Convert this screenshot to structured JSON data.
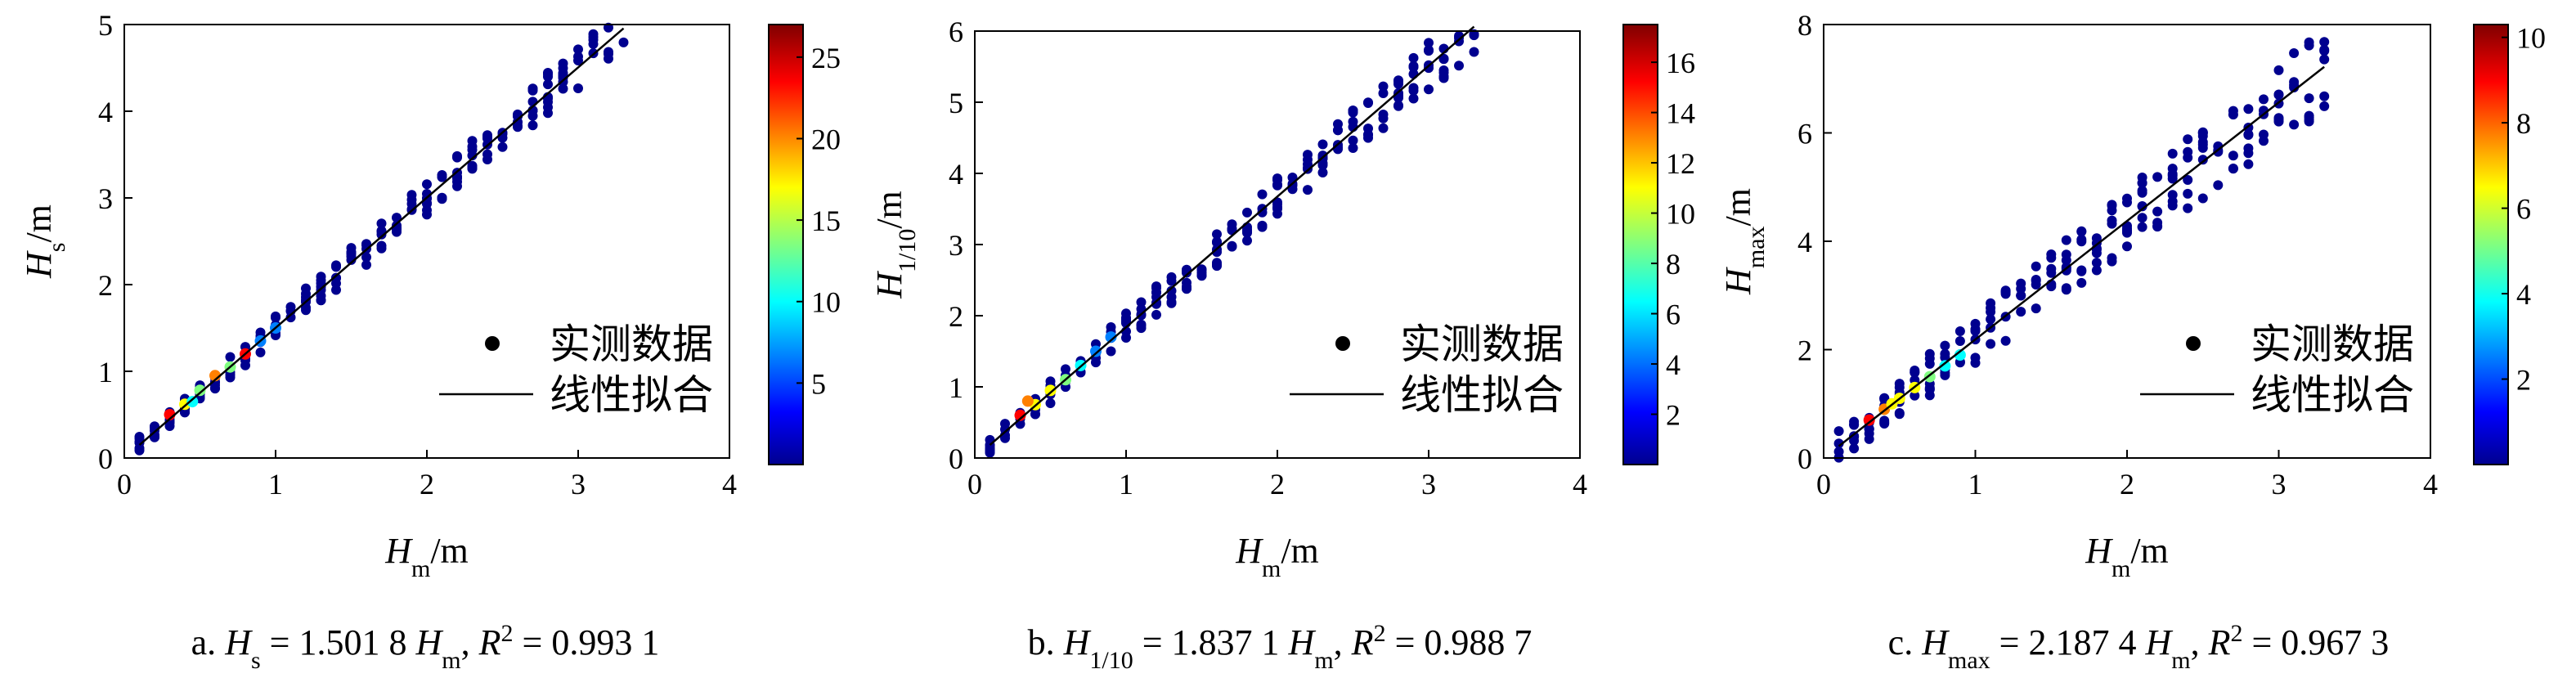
{
  "legend": {
    "points_label": "实测数据",
    "fit_label": "线性拟合"
  },
  "colormap": [
    "#00008f",
    "#0000ff",
    "#0080ff",
    "#00ffff",
    "#80ff80",
    "#ffff00",
    "#ff8000",
    "#ff0000",
    "#800000"
  ],
  "chart_data": [
    {
      "type": "scatter",
      "caption": {
        "prefix": "a. ",
        "ysym": "H",
        "ysub": "s",
        "eq": " = 1.501 8 ",
        "xsym": "H",
        "xsub": "m",
        "r2lead": ", ",
        "r2sym": "R",
        "r2sup": "2",
        "r2val": " = 0.993 1"
      },
      "xlabel": {
        "sym": "H",
        "sub": "m",
        "unit": "/m"
      },
      "ylabel": {
        "sym": "H",
        "sub": "s",
        "unit": "/m"
      },
      "xlim": [
        0,
        4
      ],
      "ylim": [
        0,
        5
      ],
      "xticks": [
        "0",
        "1",
        "2",
        "3",
        "4"
      ],
      "yticks": [
        "0",
        "1",
        "2",
        "3",
        "4",
        "5"
      ],
      "fit": {
        "slope": 1.5018,
        "x_range": [
          0.1,
          3.3
        ],
        "r2": 0.9931
      },
      "spread": 0.18,
      "colorbar": {
        "min": 0,
        "max": 27,
        "ticks": [
          "5",
          "10",
          "15",
          "20",
          "25"
        ]
      },
      "hot_points": [
        {
          "x": 0.3,
          "y": 0.5,
          "c": 22
        },
        {
          "x": 0.4,
          "y": 0.62,
          "c": 18
        },
        {
          "x": 0.5,
          "y": 0.78,
          "c": 14
        },
        {
          "x": 0.6,
          "y": 0.95,
          "c": 20
        },
        {
          "x": 0.8,
          "y": 1.2,
          "c": 24
        },
        {
          "x": 0.7,
          "y": 1.05,
          "c": 12
        },
        {
          "x": 0.9,
          "y": 1.35,
          "c": 8
        },
        {
          "x": 0.45,
          "y": 0.65,
          "c": 10
        },
        {
          "x": 1.0,
          "y": 1.5,
          "c": 6
        }
      ]
    },
    {
      "type": "scatter",
      "caption": {
        "prefix": "b. ",
        "ysym": "H",
        "ysub": "1/10",
        "eq": " = 1.837 1 ",
        "xsym": "H",
        "xsub": "m",
        "r2lead": ", ",
        "r2sym": "R",
        "r2sup": "2",
        "r2val": " = 0.988 7"
      },
      "xlabel": {
        "sym": "H",
        "sub": "m",
        "unit": "/m"
      },
      "ylabel": {
        "sym": "H",
        "sub": "1/10",
        "unit": "/m"
      },
      "xlim": [
        0,
        4
      ],
      "ylim": [
        0,
        6
      ],
      "xticks": [
        "0",
        "1",
        "2",
        "3",
        "4"
      ],
      "yticks": [
        "0",
        "1",
        "2",
        "3",
        "4",
        "5",
        "6"
      ],
      "fit": {
        "slope": 1.8371,
        "x_range": [
          0.1,
          3.3
        ],
        "r2": 0.9887
      },
      "spread": 0.25,
      "colorbar": {
        "min": 0,
        "max": 17.5,
        "ticks": [
          "2",
          "4",
          "6",
          "8",
          "10",
          "12",
          "14",
          "16"
        ]
      },
      "hot_points": [
        {
          "x": 0.3,
          "y": 0.6,
          "c": 16
        },
        {
          "x": 0.4,
          "y": 0.75,
          "c": 12
        },
        {
          "x": 0.5,
          "y": 0.95,
          "c": 10
        },
        {
          "x": 0.6,
          "y": 1.1,
          "c": 8
        },
        {
          "x": 0.7,
          "y": 1.3,
          "c": 6
        },
        {
          "x": 0.8,
          "y": 1.5,
          "c": 5
        },
        {
          "x": 0.9,
          "y": 1.7,
          "c": 4
        },
        {
          "x": 0.35,
          "y": 0.8,
          "c": 14
        }
      ]
    },
    {
      "type": "scatter",
      "caption": {
        "prefix": "c. ",
        "ysym": "H",
        "ysub": "max",
        "eq": " = 2.187 4 ",
        "xsym": "H",
        "xsub": "m",
        "r2lead": ", ",
        "r2sym": "R",
        "r2sup": "2",
        "r2val": " = 0.967 3"
      },
      "xlabel": {
        "sym": "H",
        "sub": "m",
        "unit": "/m"
      },
      "ylabel": {
        "sym": "H",
        "sub": "max",
        "unit": "/m"
      },
      "xlim": [
        0,
        4
      ],
      "ylim": [
        0,
        8
      ],
      "xticks": [
        "0",
        "1",
        "2",
        "3",
        "4"
      ],
      "yticks": [
        "0",
        "2",
        "4",
        "6",
        "8"
      ],
      "fit": {
        "slope": 2.1874,
        "x_range": [
          0.1,
          3.3
        ],
        "r2": 0.9673
      },
      "spread": 0.55,
      "colorbar": {
        "min": 0,
        "max": 10.3,
        "ticks": [
          "2",
          "4",
          "6",
          "8",
          "10"
        ]
      },
      "hot_points": [
        {
          "x": 0.3,
          "y": 0.7,
          "c": 9
        },
        {
          "x": 0.4,
          "y": 0.9,
          "c": 8
        },
        {
          "x": 0.5,
          "y": 1.1,
          "c": 7
        },
        {
          "x": 0.6,
          "y": 1.3,
          "c": 6
        },
        {
          "x": 0.7,
          "y": 1.5,
          "c": 5
        },
        {
          "x": 0.8,
          "y": 1.7,
          "c": 4
        },
        {
          "x": 0.9,
          "y": 1.9,
          "c": 4
        },
        {
          "x": 0.45,
          "y": 1.0,
          "c": 6
        }
      ]
    }
  ]
}
